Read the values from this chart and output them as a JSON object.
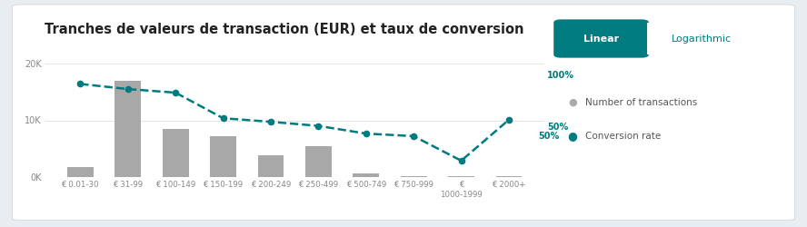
{
  "title": "Tranches de valeurs de transaction (EUR) et taux de conversion",
  "categories": [
    "€ 0.01-30",
    "€ 31-99",
    "€ 100-149",
    "€ 150-199",
    "€ 200-249",
    "€ 250-499",
    "€ 500-749",
    "€ 750-999",
    "€\n1000-1999",
    "€ 2000+"
  ],
  "bar_values": [
    1800,
    17000,
    8500,
    7200,
    3800,
    5500,
    700,
    200,
    150,
    150
  ],
  "line_values": [
    18200,
    17200,
    16500,
    11500,
    10800,
    10000,
    8500,
    8000,
    3200,
    11200
  ],
  "bar_color": "#a8a8a8",
  "line_color": "#007b80",
  "outer_bg": "#e8edf2",
  "inner_bg": "#ffffff",
  "ytick_color": "#888888",
  "xtick_color": "#888888",
  "title_color": "#222222",
  "title_fontsize": 10.5,
  "ylim_left": [
    0,
    22000
  ],
  "yticks_left": [
    0,
    10000,
    20000
  ],
  "ytick_labels_left": [
    "0K",
    "10K",
    "20K"
  ],
  "ylim_right": [
    0,
    1.22
  ],
  "yticks_right": [
    0.5,
    1.0
  ],
  "ytick_labels_right": [
    "50%",
    "100%"
  ],
  "legend_items": [
    "Number of transactions",
    "Conversion rate"
  ],
  "btn_linear_text": "Linear",
  "btn_log_text": "Logarithmic",
  "btn_linear_bg": "#007b80",
  "btn_linear_fg": "#ffffff",
  "btn_log_bg": "#ffffff",
  "btn_log_fg": "#007b80",
  "btn_log_border": "#007b80"
}
